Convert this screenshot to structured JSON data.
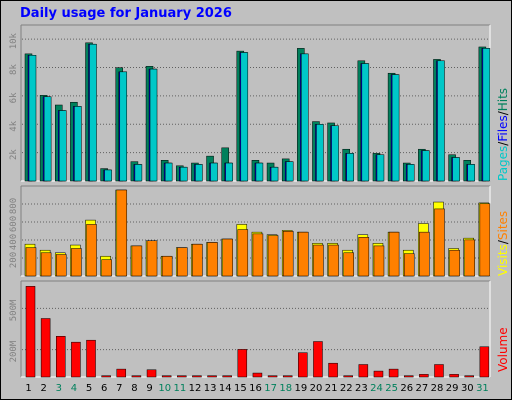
{
  "window": {
    "title": "Daily usage for January 2026"
  },
  "legends": {
    "hits_panel": {
      "pages": "Pages",
      "files": "Files",
      "hits": "Hits",
      "separator": "/"
    },
    "visits_panel": {
      "visits": "Visits",
      "sites": "Sites",
      "separator": "/"
    },
    "volume_panel": {
      "volume": "Volume"
    }
  },
  "colors": {
    "background": "#c0c0c0",
    "title": "#0000ff",
    "hits": "#00805c",
    "files": "#0000ff",
    "pages": "#00c8c8",
    "visits": "#ffff00",
    "sites": "#ff8000",
    "volume": "#ff0000",
    "weekend_label": "#00805c",
    "weekday_label": "#000000",
    "gridline": "#000000"
  },
  "chart_data": {
    "type": "bar",
    "title": "Daily usage for January 2026",
    "days": [
      "1",
      "2",
      "3",
      "4",
      "5",
      "6",
      "7",
      "8",
      "9",
      "10",
      "11",
      "12",
      "13",
      "14",
      "15",
      "16",
      "17",
      "18",
      "19",
      "20",
      "21",
      "22",
      "23",
      "24",
      "25",
      "26",
      "27",
      "28",
      "29",
      "30",
      "31"
    ],
    "weekend_days": [
      "3",
      "4",
      "10",
      "11",
      "17",
      "18",
      "24",
      "25",
      "31"
    ],
    "panels": [
      {
        "id": "hits_files_pages",
        "yticks": [
          "2k",
          "4k",
          "6k",
          "8k",
          "10k"
        ],
        "ylim": [
          0,
          11000
        ],
        "series": [
          {
            "name": "Hits",
            "values": [
              9200,
              6200,
              5500,
              5700,
              10000,
              900,
              8200,
              1400,
              8300,
              1500,
              1100,
              1300,
              1800,
              2400,
              9400,
              1500,
              1300,
              1600,
              9600,
              4300,
              4200,
              2300,
              8700,
              2000,
              7800,
              1300,
              2300,
              8800,
              1900,
              1500,
              9700
            ]
          },
          {
            "name": "Files",
            "values": [
              9100,
              6100,
              5100,
              5400,
              9900,
              800,
              7900,
              1200,
              8100,
              1300,
              1000,
              1200,
              1300,
              1300,
              9300,
              1300,
              1000,
              1400,
              9200,
              4100,
              4000,
              2000,
              8500,
              1900,
              7700,
              1200,
              2200,
              8700,
              1700,
              1200,
              9600
            ]
          },
          {
            "name": "Pages",
            "values": [
              9100,
              6100,
              5100,
              5400,
              9900,
              800,
              7900,
              1200,
              8100,
              1300,
              1000,
              1200,
              1300,
              1300,
              9300,
              1300,
              1000,
              1400,
              9200,
              4100,
              4000,
              2000,
              8500,
              1900,
              7700,
              1200,
              2200,
              8700,
              1700,
              1200,
              9600
            ]
          }
        ]
      },
      {
        "id": "visits_sites",
        "yticks": [
          "200",
          "400",
          "600",
          "800"
        ],
        "ylim": [
          0,
          1000
        ],
        "series": [
          {
            "name": "Visits",
            "values": [
              370,
              300,
              270,
              360,
              650,
              230,
              1000,
              350,
              410,
              230,
              330,
              370,
              390,
              430,
              600,
              510,
              480,
              530,
              510,
              380,
              380,
              300,
              480,
              380,
              510,
              300,
              610,
              860,
              320,
              440,
              850
            ]
          },
          {
            "name": "Sites",
            "values": [
              330,
              270,
              250,
              320,
              600,
              190,
              1000,
              350,
              410,
              230,
              330,
              370,
              390,
              430,
              540,
              490,
              470,
              520,
              510,
              360,
              360,
              270,
              450,
              350,
              510,
              260,
              510,
              780,
              300,
              420,
              840
            ]
          }
        ]
      },
      {
        "id": "volume",
        "yticks": [
          "200M",
          "500M"
        ],
        "ylim": [
          0,
          700
        ],
        "series": [
          {
            "name": "Volume",
            "values": [
              690,
              445,
              310,
              265,
              280,
              10,
              60,
              10,
              55,
              10,
              10,
              10,
              10,
              10,
              210,
              30,
              10,
              10,
              185,
              270,
              105,
              10,
              95,
              45,
              60,
              10,
              20,
              95,
              20,
              10,
              230
            ]
          }
        ]
      }
    ]
  }
}
